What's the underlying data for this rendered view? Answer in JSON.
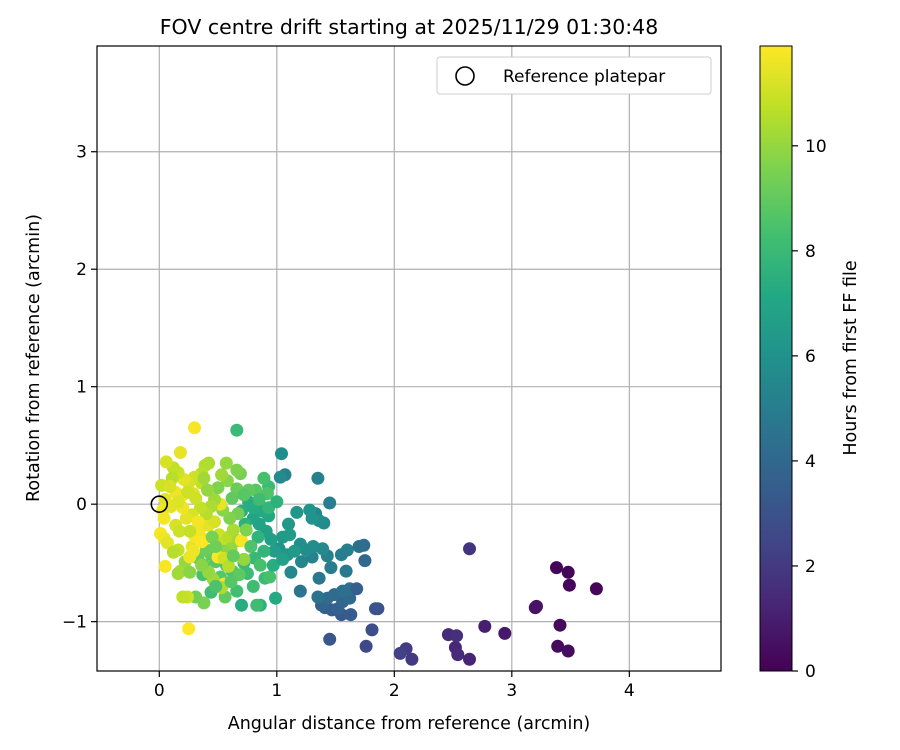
{
  "chart_data": {
    "type": "scatter",
    "title": "FOV centre drift starting at 2025/11/29 01:30:48",
    "xlabel": "Angular distance from reference (arcmin)",
    "ylabel": "Rotation from reference (arcmin)",
    "xlim": [
      -0.53,
      4.78
    ],
    "ylim": [
      -1.42,
      3.9
    ],
    "xticks": [
      0,
      1,
      2,
      3,
      4
    ],
    "yticks": [
      -1,
      0,
      1,
      2,
      3
    ],
    "grid": true,
    "legend": {
      "location": "top-right",
      "entries": [
        "Reference platepar"
      ]
    },
    "reference_point": {
      "x": 0,
      "y": 0
    },
    "colorbar": {
      "label": "Hours from first FF file",
      "colormap": "viridis",
      "range": [
        0,
        11.9
      ],
      "ticks": [
        0,
        2,
        4,
        6,
        8,
        10
      ]
    },
    "points_note": "x (arcmin), y (arcmin), t (hours from first FF file)",
    "points": [
      [
        3.38,
        -0.54,
        0.1
      ],
      [
        3.48,
        -0.58,
        0.1
      ],
      [
        3.49,
        -0.69,
        0.15
      ],
      [
        3.72,
        -0.72,
        0.2
      ],
      [
        3.41,
        -1.03,
        0.3
      ],
      [
        3.39,
        -1.21,
        0.35
      ],
      [
        3.48,
        -1.25,
        0.4
      ],
      [
        3.2,
        -0.88,
        0.5
      ],
      [
        3.21,
        -0.87,
        0.6
      ],
      [
        2.94,
        -1.1,
        0.8
      ],
      [
        2.77,
        -1.04,
        1.0
      ],
      [
        2.64,
        -1.32,
        1.2
      ],
      [
        2.52,
        -1.22,
        1.3
      ],
      [
        2.54,
        -1.28,
        1.4
      ],
      [
        2.46,
        -1.11,
        1.5
      ],
      [
        2.53,
        -1.12,
        1.6
      ],
      [
        2.64,
        -0.38,
        1.8
      ],
      [
        2.15,
        -1.32,
        2.0
      ],
      [
        2.1,
        -1.23,
        2.1
      ],
      [
        2.05,
        -1.27,
        2.3
      ],
      [
        1.76,
        -1.21,
        2.6
      ],
      [
        1.81,
        -1.07,
        2.8
      ],
      [
        1.84,
        -0.89,
        3.0
      ],
      [
        1.86,
        -0.89,
        3.1
      ],
      [
        1.45,
        -1.15,
        3.2
      ],
      [
        1.55,
        -0.94,
        3.3
      ],
      [
        1.63,
        -0.94,
        3.4
      ],
      [
        1.47,
        -0.9,
        3.5
      ],
      [
        1.41,
        -0.88,
        3.6
      ],
      [
        1.52,
        -0.89,
        3.7
      ],
      [
        1.38,
        -0.86,
        3.8
      ],
      [
        1.56,
        -0.83,
        3.9
      ],
      [
        1.62,
        -0.8,
        4.0
      ],
      [
        1.49,
        -0.77,
        4.1
      ],
      [
        1.43,
        -0.8,
        4.2
      ],
      [
        1.56,
        -0.74,
        4.3
      ],
      [
        1.62,
        -0.72,
        4.4
      ],
      [
        1.35,
        -0.79,
        4.5
      ],
      [
        1.2,
        -0.74,
        4.6
      ],
      [
        1.36,
        -0.63,
        4.7
      ],
      [
        1.59,
        -0.57,
        4.8
      ],
      [
        1.46,
        -0.54,
        4.9
      ],
      [
        1.55,
        -0.43,
        5.0
      ],
      [
        1.6,
        -0.39,
        5.1
      ],
      [
        1.43,
        -0.44,
        5.2
      ],
      [
        1.3,
        -0.45,
        5.3
      ],
      [
        1.21,
        -0.49,
        5.4
      ],
      [
        1.12,
        -0.58,
        5.5
      ],
      [
        1.39,
        -0.38,
        5.6
      ],
      [
        1.31,
        -0.36,
        5.7
      ],
      [
        1.25,
        -0.39,
        5.8
      ],
      [
        1.2,
        -0.34,
        5.9
      ],
      [
        1.75,
        -0.48,
        4.0
      ],
      [
        1.74,
        -0.35,
        4.2
      ],
      [
        1.7,
        -0.36,
        4.4
      ],
      [
        1.68,
        -0.72,
        3.6
      ],
      [
        1.45,
        0.01,
        5.0
      ],
      [
        1.35,
        0.22,
        5.2
      ],
      [
        1.33,
        -0.08,
        5.4
      ],
      [
        1.4,
        -0.16,
        5.6
      ],
      [
        1.36,
        -0.14,
        5.8
      ],
      [
        1.3,
        -0.12,
        6.0
      ],
      [
        1.28,
        -0.05,
        6.1
      ],
      [
        1.17,
        -0.07,
        6.2
      ],
      [
        1.1,
        -0.17,
        6.3
      ],
      [
        1.05,
        -0.28,
        6.4
      ],
      [
        1.11,
        -0.26,
        6.5
      ],
      [
        1.07,
        0.25,
        5.2
      ],
      [
        1.03,
        0.23,
        5.6
      ],
      [
        1.04,
        0.43,
        5.8
      ],
      [
        1.02,
        -0.38,
        6.0
      ],
      [
        1.09,
        -0.43,
        6.2
      ],
      [
        1.15,
        -0.4,
        6.4
      ],
      [
        0.98,
        -0.4,
        6.6
      ],
      [
        0.95,
        -0.3,
        6.7
      ],
      [
        0.91,
        -0.23,
        6.8
      ],
      [
        0.85,
        -0.17,
        6.9
      ],
      [
        0.8,
        -0.12,
        7.0
      ],
      [
        0.93,
        -0.1,
        7.1
      ],
      [
        0.88,
        -0.06,
        7.2
      ],
      [
        0.8,
        -0.03,
        7.3
      ],
      [
        0.76,
        0.02,
        7.4
      ],
      [
        0.7,
        -0.06,
        7.5
      ],
      [
        0.73,
        -0.17,
        7.6
      ],
      [
        0.84,
        -0.28,
        7.7
      ],
      [
        0.89,
        -0.4,
        7.8
      ],
      [
        0.81,
        -0.46,
        7.9
      ],
      [
        0.72,
        -0.5,
        8.0
      ],
      [
        0.75,
        -0.59,
        8.1
      ],
      [
        0.8,
        -0.7,
        8.2
      ],
      [
        0.66,
        -0.74,
        8.3
      ],
      [
        0.7,
        -0.86,
        7.4
      ],
      [
        0.86,
        -0.86,
        7.6
      ],
      [
        0.83,
        -0.86,
        8.2
      ],
      [
        0.9,
        -0.63,
        8.0
      ],
      [
        0.94,
        -0.62,
        8.4
      ],
      [
        0.99,
        -0.8,
        7.2
      ],
      [
        0.62,
        -0.57,
        8.5
      ],
      [
        0.57,
        -0.52,
        8.6
      ],
      [
        0.52,
        -0.62,
        8.7
      ],
      [
        0.48,
        -0.49,
        8.8
      ],
      [
        0.44,
        -0.43,
        8.9
      ],
      [
        0.38,
        -0.52,
        9.0
      ],
      [
        0.33,
        -0.46,
        9.1
      ],
      [
        0.4,
        -0.39,
        9.2
      ],
      [
        0.37,
        -0.6,
        8.4
      ],
      [
        0.44,
        -0.75,
        8.2
      ],
      [
        0.56,
        -0.79,
        9.0
      ],
      [
        0.31,
        -0.79,
        9.3
      ],
      [
        0.38,
        -0.84,
        9.5
      ],
      [
        0.66,
        0.63,
        8.0
      ],
      [
        0.93,
        0.15,
        8.0
      ],
      [
        0.92,
        0.09,
        8.6
      ],
      [
        0.89,
        0.22,
        8.4
      ],
      [
        0.82,
        0.12,
        8.8
      ],
      [
        0.76,
        0.12,
        9.0
      ],
      [
        0.66,
        0.13,
        9.2
      ],
      [
        0.69,
        0.26,
        9.4
      ],
      [
        0.66,
        0.29,
        9.6
      ],
      [
        0.58,
        0.2,
        9.8
      ],
      [
        0.57,
        0.35,
        10.0
      ],
      [
        0.53,
        0.25,
        10.2
      ],
      [
        0.42,
        0.35,
        10.4
      ],
      [
        0.39,
        0.33,
        10.5
      ],
      [
        0.36,
        0.26,
        10.6
      ],
      [
        0.36,
        0.18,
        10.8
      ],
      [
        0.3,
        0.23,
        11.0
      ],
      [
        0.25,
        0.18,
        11.2
      ],
      [
        0.29,
        0.09,
        11.3
      ],
      [
        0.21,
        0.21,
        11.4
      ],
      [
        0.16,
        0.27,
        11.0
      ],
      [
        0.18,
        0.44,
        11.5
      ],
      [
        0.12,
        0.31,
        10.8
      ],
      [
        0.11,
        0.22,
        10.6
      ],
      [
        0.06,
        0.36,
        11.2
      ],
      [
        0.02,
        0.16,
        11.0
      ],
      [
        0.05,
        0.04,
        11.4
      ],
      [
        0.03,
        -0.05,
        11.6
      ],
      [
        0.04,
        -0.12,
        11.7
      ],
      [
        0.01,
        -0.25,
        11.8
      ],
      [
        0.04,
        -0.29,
        11.6
      ],
      [
        0.07,
        -0.33,
        11.4
      ],
      [
        0.14,
        -0.18,
        11.2
      ],
      [
        0.17,
        -0.23,
        11.0
      ],
      [
        0.16,
        -0.39,
        10.8
      ],
      [
        0.12,
        -0.41,
        10.6
      ],
      [
        0.18,
        -0.57,
        10.4
      ],
      [
        0.16,
        -0.59,
        10.2
      ],
      [
        0.22,
        -0.49,
        10.0
      ],
      [
        0.26,
        -0.58,
        9.8
      ],
      [
        0.05,
        -0.53,
        11.8
      ],
      [
        0.25,
        -1.06,
        11.9
      ],
      [
        0.3,
        0.65,
        11.8
      ],
      [
        0.26,
        -0.45,
        11.6
      ],
      [
        0.24,
        -0.79,
        11.0
      ],
      [
        0.2,
        -0.79,
        10.8
      ],
      [
        0.28,
        -0.36,
        11.5
      ],
      [
        0.3,
        -0.27,
        11.8
      ],
      [
        0.34,
        -0.22,
        11.7
      ],
      [
        0.38,
        -0.3,
        11.6
      ],
      [
        0.42,
        -0.18,
        11.4
      ],
      [
        0.47,
        -0.15,
        11.2
      ],
      [
        0.51,
        -0.26,
        11.0
      ],
      [
        0.55,
        -0.33,
        10.8
      ],
      [
        0.59,
        -0.28,
        10.6
      ],
      [
        0.63,
        -0.22,
        10.4
      ],
      [
        0.67,
        -0.31,
        10.2
      ],
      [
        0.61,
        -0.38,
        10.0
      ],
      [
        0.55,
        -0.4,
        9.8
      ],
      [
        0.5,
        -0.45,
        11.9
      ],
      [
        0.55,
        -0.46,
        11.0
      ],
      [
        0.59,
        -0.53,
        10.6
      ],
      [
        0.55,
        -0.68,
        11.7
      ],
      [
        0.53,
        -0.71,
        10.4
      ],
      [
        0.46,
        -0.64,
        10.2
      ],
      [
        0.42,
        -0.58,
        10.0
      ],
      [
        0.36,
        -0.52,
        9.8
      ],
      [
        0.7,
        -0.31,
        11.8
      ],
      [
        0.72,
        -0.47,
        10.0
      ],
      [
        0.74,
        -0.22,
        9.6
      ],
      [
        0.67,
        -0.08,
        9.4
      ],
      [
        0.6,
        -0.12,
        9.6
      ],
      [
        0.54,
        -0.05,
        9.8
      ],
      [
        0.52,
        0.0,
        11.5
      ],
      [
        0.47,
        0.04,
        10.2
      ],
      [
        0.44,
        -0.02,
        10.4
      ],
      [
        0.4,
        -0.08,
        10.6
      ],
      [
        0.35,
        -0.03,
        10.8
      ],
      [
        0.31,
        0.05,
        11.0
      ],
      [
        0.28,
        -0.09,
        11.2
      ],
      [
        0.23,
        -0.12,
        11.4
      ],
      [
        0.2,
        -0.03,
        11.6
      ],
      [
        0.19,
        0.07,
        11.8
      ],
      [
        0.14,
        0.1,
        11.6
      ],
      [
        0.1,
        -0.02,
        11.4
      ],
      [
        0.09,
        0.15,
        11.2
      ],
      [
        0.33,
        -0.15,
        11.7
      ],
      [
        0.36,
        -0.32,
        11.9
      ],
      [
        0.29,
        -0.4,
        11.6
      ],
      [
        0.45,
        -0.28,
        9.5
      ],
      [
        0.48,
        -0.36,
        9.3
      ],
      [
        0.63,
        -0.44,
        9.1
      ],
      [
        0.68,
        -0.6,
        8.9
      ],
      [
        0.61,
        -0.66,
        8.7
      ],
      [
        0.48,
        -0.7,
        8.5
      ],
      [
        0.5,
        0.14,
        9.6
      ],
      [
        0.62,
        0.05,
        9.0
      ],
      [
        0.72,
        0.08,
        8.8
      ],
      [
        0.78,
        -0.36,
        8.6
      ],
      [
        0.86,
        -0.52,
        8.4
      ],
      [
        0.97,
        -0.52,
        7.4
      ],
      [
        1.05,
        -0.47,
        6.8
      ],
      [
        0.93,
        -0.03,
        7.8
      ],
      [
        1.0,
        0.02,
        7.6
      ],
      [
        0.85,
        0.04,
        8.2
      ],
      [
        0.41,
        0.12,
        10.0
      ],
      [
        0.38,
        0.22,
        10.2
      ],
      [
        0.24,
        0.1,
        11.0
      ],
      [
        0.16,
        0.02,
        11.3
      ],
      [
        0.26,
        -0.23,
        10.9
      ]
    ]
  }
}
